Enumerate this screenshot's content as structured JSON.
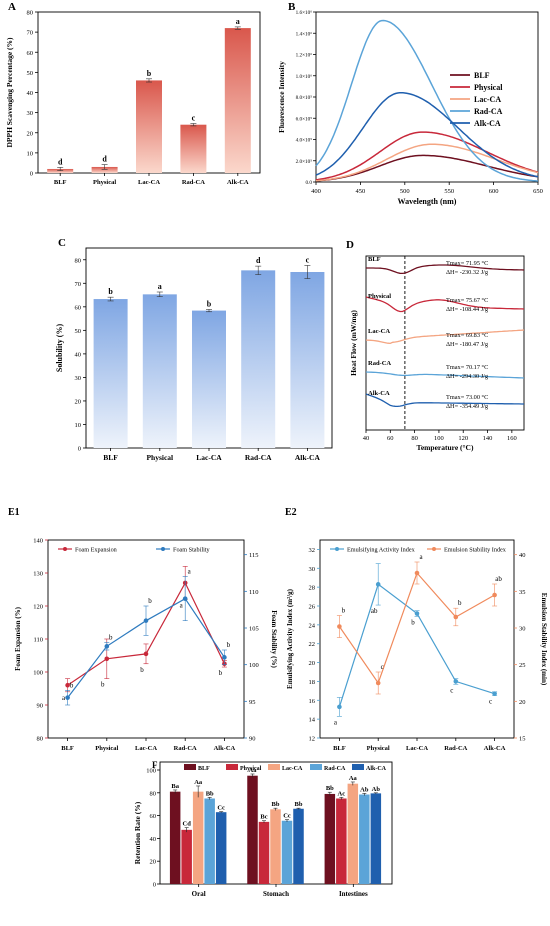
{
  "panels": {
    "A": "A",
    "B": "B",
    "C": "C",
    "D": "D",
    "E1": "E1",
    "E2": "E2",
    "F": "F"
  },
  "chart_data": [
    {
      "id": "A",
      "type": "bar",
      "categories": [
        "BLF",
        "Physical",
        "Lac-CA",
        "Rad-CA",
        "Alk-CA"
      ],
      "values": [
        2,
        3,
        46,
        24,
        72
      ],
      "errors": [
        0.8,
        1.2,
        0.8,
        0.6,
        0.6
      ],
      "letters": [
        "d",
        "d",
        "b",
        "c",
        "a"
      ],
      "ylabel": "DPPH Scavenging Percentage (%)",
      "ylim": [
        0,
        80
      ],
      "yticks": [
        0,
        10,
        20,
        30,
        40,
        50,
        60,
        70,
        80
      ],
      "colors": {
        "top": "#d9574c",
        "bottom": "#fbd8cc"
      }
    },
    {
      "id": "B",
      "type": "line",
      "xlabel": "Wavelength (nm)",
      "ylabel": "Fluorescence Intensity",
      "xlim": [
        400,
        650
      ],
      "xticks": [
        400,
        450,
        500,
        550,
        600,
        650
      ],
      "ylim": [
        0,
        1600000
      ],
      "ytick_labels": [
        "0.0",
        "2.0×10⁵",
        "4.0×10⁵",
        "6.0×10⁵",
        "8.0×10⁵",
        "1.0×10⁶",
        "1.2×10⁶",
        "1.4×10⁶",
        "1.6×10⁶"
      ],
      "yticks": [
        0,
        200000,
        400000,
        600000,
        800000,
        1000000,
        1200000,
        1400000,
        1600000
      ],
      "series": [
        {
          "name": "BLF",
          "color": "#6e1020",
          "peak": 520,
          "amp": 250000,
          "wl": 48,
          "wr": 72
        },
        {
          "name": "Physical",
          "color": "#c8283a",
          "peak": 520,
          "amp": 470000,
          "wl": 48,
          "wr": 72
        },
        {
          "name": "Lac-CA",
          "color": "#f4a582",
          "peak": 530,
          "amp": 355000,
          "wl": 50,
          "wr": 72
        },
        {
          "name": "Rad-CA",
          "color": "#5ba4d8",
          "peak": 475,
          "amp": 1520000,
          "wl": 35,
          "wr": 55
        },
        {
          "name": "Alk-CA",
          "color": "#1f5fae",
          "peak": 495,
          "amp": 840000,
          "wl": 42,
          "wr": 65
        }
      ],
      "legend": "right"
    },
    {
      "id": "C",
      "type": "bar",
      "categories": [
        "BLF",
        "Physical",
        "Lac-CA",
        "Rad-CA",
        "Alk-CA"
      ],
      "values": [
        63.3,
        65.3,
        58.4,
        75.5,
        74.8
      ],
      "errors": [
        0.8,
        1.0,
        0.5,
        1.8,
        2.8
      ],
      "letters": [
        "b",
        "a",
        "b",
        "d",
        "c"
      ],
      "ylabel": "Solubility (%)",
      "ylim": [
        0,
        85
      ],
      "yticks": [
        0,
        10,
        20,
        30,
        40,
        50,
        60,
        70,
        80
      ],
      "colors": {
        "top": "#7fa6e3",
        "bottom": "#eef3fb"
      }
    },
    {
      "id": "D",
      "type": "line",
      "xlabel": "Temperature (°C)",
      "ylabel": "Heat Flow (mW/mg)",
      "xlim": [
        40,
        170
      ],
      "xticks": [
        40,
        60,
        80,
        100,
        120,
        140,
        160
      ],
      "series": [
        {
          "name": "BLF",
          "color": "#6e1020",
          "tmax": "Tmax= 71.95 °C",
          "dh": "ΔH= -230.32 J/g"
        },
        {
          "name": "Physical",
          "color": "#c8283a",
          "tmax": "Tmax= 75.67 °C",
          "dh": "ΔH= -108.44 J/g"
        },
        {
          "name": "Lac-CA",
          "color": "#f4a582",
          "tmax": "Tmax= 69.83 °C",
          "dh": "ΔH= -180.47 J/g"
        },
        {
          "name": "Rad-CA",
          "color": "#5ba4d8",
          "tmax": "Tmax= 70.17 °C",
          "dh": "ΔH= -294.30 J/g"
        },
        {
          "name": "Alk-CA",
          "color": "#1f5fae",
          "tmax": "Tmax= 73.00 °C",
          "dh": "ΔH= -354.49 J/g"
        }
      ],
      "dashed_x": 72
    },
    {
      "id": "E1",
      "type": "line",
      "categories": [
        "BLF",
        "Physical",
        "Lac-CA",
        "Rad-CA",
        "Alk-CA"
      ],
      "series": [
        {
          "name": "Foam Expansion",
          "axis": "left",
          "color": "#c8283a",
          "values": [
            96,
            104,
            105.5,
            127,
            102.5
          ],
          "errors": [
            2,
            6,
            3,
            5,
            1
          ],
          "letters": [
            "a",
            "b",
            "b",
            "a",
            "b"
          ]
        },
        {
          "name": "Foam Stability",
          "axis": "right",
          "color": "#2e7bbf",
          "values": [
            95.5,
            102.5,
            106,
            109,
            101
          ],
          "errors": [
            1,
            0.5,
            2,
            3,
            1
          ],
          "letters": [
            "b",
            "b",
            "b",
            "a",
            "b"
          ]
        }
      ],
      "ylabel_left": "Foam Expansion (%)",
      "ylim_left": [
        80,
        140
      ],
      "yticks_left": [
        80,
        90,
        100,
        110,
        120,
        130,
        140
      ],
      "ylabel_right": "Foam Stability (%)",
      "ylim_right": [
        90,
        117
      ],
      "yticks_right": [
        90,
        95,
        100,
        105,
        110,
        115
      ]
    },
    {
      "id": "E2",
      "type": "line",
      "categories": [
        "BLF",
        "Physical",
        "Lac-CA",
        "Rad-CA",
        "Alk-CA"
      ],
      "series": [
        {
          "name": "Emulsifying Activity Index",
          "axis": "left",
          "color": "#4a9fd0",
          "values": [
            15.3,
            28.3,
            25.2,
            18,
            16.7
          ],
          "errors": [
            1,
            2.2,
            0.3,
            0.3,
            0.2
          ],
          "letters": [
            "a",
            "ab",
            "b",
            "c",
            "c"
          ]
        },
        {
          "name": "Emulsion Stability Index",
          "axis": "right",
          "color": "#f08a5c",
          "values": [
            30.2,
            22.5,
            37.5,
            31.5,
            34.5
          ],
          "errors": [
            1.5,
            1.5,
            1.5,
            1.2,
            1.5
          ],
          "letters": [
            "b",
            "c",
            "a",
            "b",
            "ab"
          ]
        }
      ],
      "ylabel_left": "Emulsifying Activity Index (m²/g)",
      "ylim_left": [
        12,
        33
      ],
      "yticks_left": [
        12,
        14,
        16,
        18,
        20,
        22,
        24,
        26,
        28,
        30,
        32
      ],
      "ylabel_right": "Emulsion Stability Index (min)",
      "ylim_right": [
        15,
        42
      ],
      "yticks_right": [
        15,
        20,
        25,
        30,
        35,
        40
      ]
    },
    {
      "id": "F",
      "type": "bar",
      "categories": [
        "Oral",
        "Stomach",
        "Intestines"
      ],
      "series": [
        {
          "name": "BLF",
          "color": "#6e1020",
          "values": [
            81,
            95,
            79
          ],
          "errors": [
            1.5,
            1.5,
            1.5
          ],
          "letters": [
            "Ba",
            "Aa",
            "Bb"
          ]
        },
        {
          "name": "Physical",
          "color": "#c8283a",
          "values": [
            47.5,
            54.5,
            75
          ],
          "errors": [
            2,
            1,
            1
          ],
          "letters": [
            "Cd",
            "Bc",
            "Ac"
          ]
        },
        {
          "name": "Lac-CA",
          "color": "#f4a582",
          "values": [
            81,
            65.5,
            88
          ],
          "errors": [
            5,
            1,
            1.5
          ],
          "letters": [
            "Aa",
            "Bb",
            "Aa"
          ]
        },
        {
          "name": "Rad-CA",
          "color": "#5ba4d8",
          "values": [
            75,
            55.5,
            78.5
          ],
          "errors": [
            1,
            1,
            1
          ],
          "letters": [
            "Bb",
            "Cc",
            "Ab"
          ]
        },
        {
          "name": "Alk-CA",
          "color": "#1f5fae",
          "values": [
            63,
            66,
            79.5
          ],
          "errors": [
            0.5,
            0.5,
            0.5
          ],
          "letters": [
            "Cc",
            "Bb",
            "Ab"
          ]
        }
      ],
      "ylabel": "Retention Rate (%)",
      "ylim": [
        0,
        100
      ],
      "yticks": [
        0,
        20,
        40,
        60,
        80,
        100
      ],
      "legend": "top"
    }
  ]
}
